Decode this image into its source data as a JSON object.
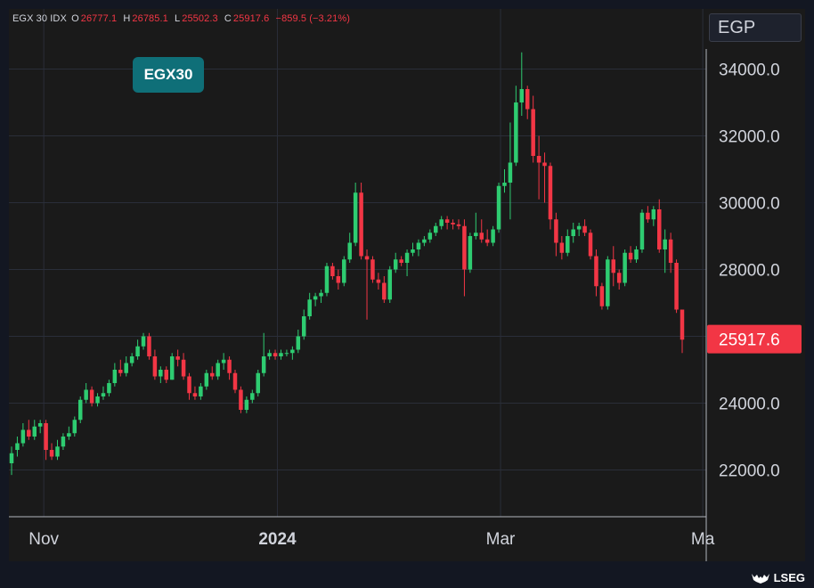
{
  "header": {
    "symbol": "EGX 30 IDX",
    "o_key": "O",
    "o_val": "26777.1",
    "h_key": "H",
    "h_val": "26785.1",
    "l_key": "L",
    "l_val": "25502.3",
    "c_key": "C",
    "c_val": "25917.6",
    "change": "−859.5 (−3.21%)"
  },
  "badge": "EGX30",
  "currency": "EGP",
  "brand": "LSEG",
  "brand_logo_icon": "stag-logo-icon",
  "colors": {
    "up": "#26a69a",
    "up_bright": "#2ecc71",
    "down": "#f23645",
    "background": "#131722",
    "grid": "#2a2e39",
    "text": "#d1d4dc",
    "badge": "#0f6f78"
  },
  "chart_data": {
    "type": "candlestick",
    "title": "",
    "xlabel": "",
    "ylabel": "",
    "ylim": [
      20600,
      35800
    ],
    "x_ticks": [
      "Nov",
      "2024",
      "Mar",
      "Ma"
    ],
    "y_ticks": [
      "22000.0",
      "24000.0",
      "26000.0",
      "28000.0",
      "30000.0",
      "32000.0",
      "34000.0"
    ],
    "last_price_label": "25917.6",
    "grid": true,
    "series": [
      {
        "values": [
          [
            22200,
            22700,
            21850,
            22500
          ],
          [
            22600,
            23000,
            22400,
            22800
          ],
          [
            22800,
            23400,
            22700,
            23200
          ],
          [
            23200,
            23500,
            22900,
            23000
          ],
          [
            23000,
            23500,
            22900,
            23300
          ],
          [
            23300,
            23500,
            23100,
            23400
          ],
          [
            23400,
            23500,
            22300,
            22600
          ],
          [
            22600,
            22800,
            22300,
            22400
          ],
          [
            22400,
            22900,
            22300,
            22700
          ],
          [
            22700,
            23100,
            22600,
            23000
          ],
          [
            23000,
            23300,
            22900,
            23100
          ],
          [
            23100,
            23600,
            23000,
            23500
          ],
          [
            23500,
            24200,
            23400,
            24100
          ],
          [
            24100,
            24600,
            24000,
            24400
          ],
          [
            24400,
            24500,
            23900,
            24000
          ],
          [
            24000,
            24300,
            23900,
            24200
          ],
          [
            24200,
            24500,
            24100,
            24300
          ],
          [
            24300,
            24700,
            24200,
            24600
          ],
          [
            24600,
            25200,
            24500,
            25000
          ],
          [
            25000,
            25300,
            24800,
            24900
          ],
          [
            24900,
            25400,
            24800,
            25200
          ],
          [
            25200,
            25500,
            25100,
            25400
          ],
          [
            25400,
            25900,
            25300,
            25700
          ],
          [
            25700,
            26100,
            25600,
            26000
          ],
          [
            26000,
            26100,
            25300,
            25400
          ],
          [
            25400,
            25600,
            24700,
            24800
          ],
          [
            24800,
            25100,
            24600,
            25000
          ],
          [
            25000,
            25100,
            24600,
            24700
          ],
          [
            24700,
            25500,
            24700,
            25400
          ],
          [
            25400,
            25600,
            25100,
            25300
          ],
          [
            25300,
            25500,
            24700,
            24800
          ],
          [
            24800,
            24900,
            24100,
            24300
          ],
          [
            24300,
            24500,
            24100,
            24200
          ],
          [
            24200,
            24600,
            24100,
            24500
          ],
          [
            24500,
            25000,
            24400,
            24900
          ],
          [
            24900,
            25100,
            24700,
            24800
          ],
          [
            24800,
            25300,
            24700,
            25200
          ],
          [
            25200,
            25500,
            25000,
            25300
          ],
          [
            25300,
            25400,
            24700,
            24900
          ],
          [
            24900,
            25000,
            24300,
            24400
          ],
          [
            24400,
            24500,
            23700,
            23800
          ],
          [
            23800,
            24200,
            23700,
            24100
          ],
          [
            24100,
            24400,
            24000,
            24300
          ],
          [
            24300,
            25000,
            24200,
            24900
          ],
          [
            24900,
            26100,
            24800,
            25400
          ],
          [
            25400,
            25600,
            25300,
            25500
          ],
          [
            25500,
            25600,
            25300,
            25400
          ],
          [
            25400,
            25600,
            25300,
            25500
          ],
          [
            25500,
            25600,
            25400,
            25500
          ],
          [
            25500,
            25700,
            25300,
            25600
          ],
          [
            25600,
            26200,
            25500,
            26000
          ],
          [
            26000,
            26800,
            25900,
            26600
          ],
          [
            26600,
            27300,
            26500,
            27100
          ],
          [
            27100,
            27300,
            26900,
            27200
          ],
          [
            27200,
            27400,
            27000,
            27300
          ],
          [
            27300,
            28200,
            27200,
            28100
          ],
          [
            28100,
            28200,
            27700,
            27800
          ],
          [
            27800,
            28000,
            27400,
            27600
          ],
          [
            27600,
            28400,
            27500,
            28300
          ],
          [
            28300,
            29100,
            28200,
            28800
          ],
          [
            28800,
            30600,
            28700,
            30300
          ],
          [
            30300,
            30600,
            28300,
            28400
          ],
          [
            28400,
            28600,
            26500,
            28300
          ],
          [
            28300,
            28400,
            27600,
            27700
          ],
          [
            27700,
            27900,
            27400,
            27600
          ],
          [
            27600,
            27800,
            27000,
            27100
          ],
          [
            27100,
            28100,
            27000,
            28000
          ],
          [
            28000,
            28500,
            27900,
            28300
          ],
          [
            28300,
            28400,
            28100,
            28200
          ],
          [
            28200,
            28600,
            27800,
            28500
          ],
          [
            28500,
            28800,
            28400,
            28600
          ],
          [
            28600,
            28900,
            28400,
            28800
          ],
          [
            28800,
            29000,
            28700,
            28900
          ],
          [
            28900,
            29200,
            28800,
            29100
          ],
          [
            29100,
            29400,
            29000,
            29300
          ],
          [
            29300,
            29600,
            29200,
            29500
          ],
          [
            29500,
            29600,
            29200,
            29400
          ],
          [
            29400,
            29500,
            29200,
            29350
          ],
          [
            29350,
            29500,
            29200,
            29300
          ],
          [
            29300,
            29500,
            27200,
            28000
          ],
          [
            28000,
            29100,
            27900,
            29000
          ],
          [
            29000,
            29700,
            28900,
            29100
          ],
          [
            29100,
            29500,
            28800,
            28900
          ],
          [
            28900,
            29200,
            28700,
            28800
          ],
          [
            28800,
            29300,
            28700,
            29200
          ],
          [
            29200,
            30600,
            29100,
            30500
          ],
          [
            30500,
            31000,
            30300,
            30600
          ],
          [
            30600,
            32400,
            29500,
            31200
          ],
          [
            31200,
            33500,
            31100,
            33000
          ],
          [
            33000,
            34500,
            32600,
            33400
          ],
          [
            33400,
            33500,
            32500,
            32800
          ],
          [
            32800,
            33200,
            31200,
            31400
          ],
          [
            31400,
            32000,
            30100,
            31200
          ],
          [
            31200,
            31500,
            30000,
            31100
          ],
          [
            31100,
            31200,
            29200,
            29500
          ],
          [
            29500,
            29700,
            28400,
            28800
          ],
          [
            28800,
            29000,
            28300,
            28500
          ],
          [
            28500,
            29200,
            28400,
            29000
          ],
          [
            29000,
            29400,
            28800,
            29200
          ],
          [
            29200,
            29400,
            29000,
            29300
          ],
          [
            29300,
            29500,
            29000,
            29100
          ],
          [
            29100,
            29200,
            28300,
            28400
          ],
          [
            28400,
            28600,
            27200,
            27500
          ],
          [
            27500,
            27600,
            26800,
            26900
          ],
          [
            26900,
            28400,
            26800,
            28300
          ],
          [
            28300,
            28700,
            27500,
            27900
          ],
          [
            27900,
            28000,
            27400,
            27600
          ],
          [
            27600,
            28600,
            27500,
            28500
          ],
          [
            28500,
            28700,
            28200,
            28300
          ],
          [
            28300,
            28700,
            28200,
            28600
          ],
          [
            28600,
            29800,
            28500,
            29700
          ],
          [
            29700,
            29900,
            29400,
            29500
          ],
          [
            29500,
            29900,
            29300,
            29800
          ],
          [
            29800,
            30100,
            28500,
            28600
          ],
          [
            28600,
            29200,
            27900,
            28900
          ],
          [
            28900,
            29100,
            27900,
            28200
          ],
          [
            28200,
            28300,
            26700,
            26800
          ],
          [
            26800,
            26800,
            25500,
            25900
          ]
        ]
      }
    ]
  }
}
